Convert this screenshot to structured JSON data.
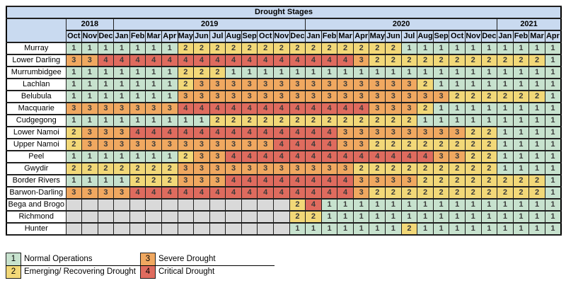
{
  "chart_data": {
    "type": "heatmap",
    "title": "Drought Stages",
    "year_groups": [
      {
        "label": "2018",
        "span": 3
      },
      {
        "label": "2019",
        "span": 12
      },
      {
        "label": "2020",
        "span": 12
      },
      {
        "label": "2021",
        "span": 4
      }
    ],
    "months": [
      "Oct",
      "Nov",
      "Dec",
      "Jan",
      "Feb",
      "Mar",
      "Apr",
      "May",
      "Jun",
      "Jul",
      "Aug",
      "Sep",
      "Oct",
      "Nov",
      "Dec",
      "Jan",
      "Feb",
      "Mar",
      "Apr",
      "May",
      "Jun",
      "Jul",
      "Aug",
      "Sep",
      "Oct",
      "Nov",
      "Dec",
      "Jan",
      "Feb",
      "Mar",
      "Apr"
    ],
    "value_scale": {
      "min": 1,
      "max": 4
    },
    "rows": [
      {
        "name": "Murray",
        "values": [
          1,
          1,
          1,
          1,
          1,
          1,
          1,
          2,
          2,
          2,
          2,
          2,
          2,
          2,
          2,
          2,
          2,
          2,
          2,
          2,
          2,
          1,
          1,
          1,
          1,
          1,
          1,
          1,
          1,
          1,
          1
        ]
      },
      {
        "name": "Lower Darling",
        "values": [
          3,
          3,
          4,
          4,
          4,
          4,
          4,
          4,
          4,
          4,
          4,
          4,
          4,
          4,
          4,
          4,
          4,
          4,
          3,
          2,
          2,
          2,
          2,
          2,
          2,
          2,
          2,
          2,
          2,
          2,
          1
        ]
      },
      {
        "name": "Murrumbidgee",
        "values": [
          1,
          1,
          1,
          1,
          1,
          1,
          1,
          2,
          2,
          2,
          1,
          1,
          1,
          1,
          1,
          1,
          1,
          1,
          1,
          1,
          1,
          1,
          1,
          1,
          1,
          1,
          1,
          1,
          1,
          1,
          1
        ]
      },
      {
        "name": "Lachlan",
        "values": [
          1,
          1,
          1,
          1,
          1,
          1,
          1,
          2,
          3,
          3,
          3,
          3,
          3,
          3,
          3,
          3,
          3,
          3,
          3,
          3,
          3,
          3,
          2,
          1,
          1,
          1,
          1,
          1,
          1,
          1,
          1
        ]
      },
      {
        "name": "Belubula",
        "values": [
          1,
          1,
          1,
          1,
          1,
          1,
          1,
          3,
          3,
          3,
          3,
          3,
          3,
          3,
          3,
          3,
          3,
          3,
          3,
          3,
          3,
          3,
          3,
          3,
          2,
          2,
          2,
          2,
          2,
          2,
          1
        ]
      },
      {
        "name": "Macquarie",
        "values": [
          3,
          3,
          3,
          3,
          3,
          3,
          3,
          4,
          4,
          4,
          4,
          4,
          4,
          4,
          4,
          4,
          4,
          4,
          4,
          3,
          3,
          3,
          2,
          1,
          1,
          1,
          1,
          1,
          1,
          1,
          1
        ]
      },
      {
        "name": "Cudgegong",
        "values": [
          1,
          1,
          1,
          1,
          1,
          1,
          1,
          1,
          1,
          2,
          2,
          2,
          2,
          2,
          2,
          2,
          2,
          2,
          2,
          2,
          2,
          2,
          1,
          1,
          1,
          1,
          1,
          1,
          1,
          1,
          1
        ]
      },
      {
        "name": "Lower Namoi",
        "values": [
          2,
          3,
          3,
          3,
          4,
          4,
          4,
          4,
          4,
          4,
          4,
          4,
          4,
          4,
          4,
          4,
          4,
          3,
          3,
          3,
          3,
          3,
          3,
          3,
          3,
          2,
          2,
          1,
          1,
          1,
          1
        ]
      },
      {
        "name": "Upper Namoi",
        "values": [
          2,
          3,
          3,
          3,
          3,
          3,
          3,
          3,
          3,
          3,
          3,
          3,
          3,
          4,
          4,
          4,
          4,
          3,
          3,
          2,
          2,
          2,
          2,
          2,
          2,
          2,
          2,
          1,
          1,
          1,
          1
        ]
      },
      {
        "name": "Peel",
        "values": [
          1,
          1,
          1,
          1,
          1,
          1,
          1,
          2,
          3,
          3,
          4,
          4,
          4,
          4,
          4,
          4,
          4,
          4,
          4,
          4,
          4,
          4,
          4,
          3,
          3,
          2,
          2,
          1,
          1,
          1,
          1
        ]
      },
      {
        "name": "Gwydir",
        "values": [
          2,
          2,
          2,
          2,
          2,
          2,
          2,
          3,
          3,
          3,
          3,
          3,
          3,
          3,
          3,
          3,
          3,
          3,
          2,
          2,
          2,
          2,
          2,
          2,
          2,
          2,
          2,
          1,
          1,
          1,
          1
        ]
      },
      {
        "name": "Border Rivers",
        "values": [
          1,
          1,
          1,
          1,
          2,
          2,
          2,
          3,
          3,
          3,
          4,
          4,
          4,
          4,
          4,
          4,
          4,
          4,
          3,
          3,
          3,
          3,
          2,
          2,
          2,
          2,
          2,
          2,
          2,
          2,
          1
        ]
      },
      {
        "name": "Barwon-Darling",
        "values": [
          3,
          3,
          3,
          3,
          4,
          4,
          4,
          4,
          4,
          4,
          4,
          4,
          4,
          4,
          4,
          4,
          4,
          4,
          3,
          2,
          2,
          2,
          2,
          2,
          2,
          2,
          2,
          2,
          2,
          2,
          1
        ]
      },
      {
        "name": "Bega and Brogo",
        "values": [
          null,
          null,
          null,
          null,
          null,
          null,
          null,
          null,
          null,
          null,
          null,
          null,
          null,
          null,
          2,
          4,
          1,
          1,
          1,
          1,
          1,
          1,
          1,
          1,
          1,
          1,
          1,
          1,
          1,
          1,
          1
        ]
      },
      {
        "name": "Richmond",
        "values": [
          null,
          null,
          null,
          null,
          null,
          null,
          null,
          null,
          null,
          null,
          null,
          null,
          null,
          null,
          2,
          2,
          1,
          1,
          1,
          1,
          1,
          1,
          1,
          1,
          1,
          1,
          1,
          1,
          1,
          1,
          1
        ]
      },
      {
        "name": "Hunter",
        "values": [
          null,
          null,
          null,
          null,
          null,
          null,
          null,
          null,
          null,
          null,
          null,
          null,
          null,
          null,
          1,
          1,
          1,
          1,
          1,
          1,
          1,
          2,
          1,
          1,
          1,
          1,
          1,
          1,
          1,
          1,
          1
        ]
      }
    ],
    "legend": [
      {
        "value": "1",
        "label": "Normal Operations"
      },
      {
        "value": "2",
        "label": "Emerging/ Recovering Drought"
      },
      {
        "value": "3",
        "label": "Severe Drought"
      },
      {
        "value": "4",
        "label": "Critical Drought"
      }
    ],
    "stage_colors": {
      "1": "#C7E2CE",
      "2": "#F2D878",
      "3": "#F0A860",
      "4": "#DF6B5E",
      "empty": "#D9D9D9",
      "header": "#C9DAF0"
    },
    "layout": {
      "legend_position": "bottom-left",
      "grid": true
    }
  }
}
